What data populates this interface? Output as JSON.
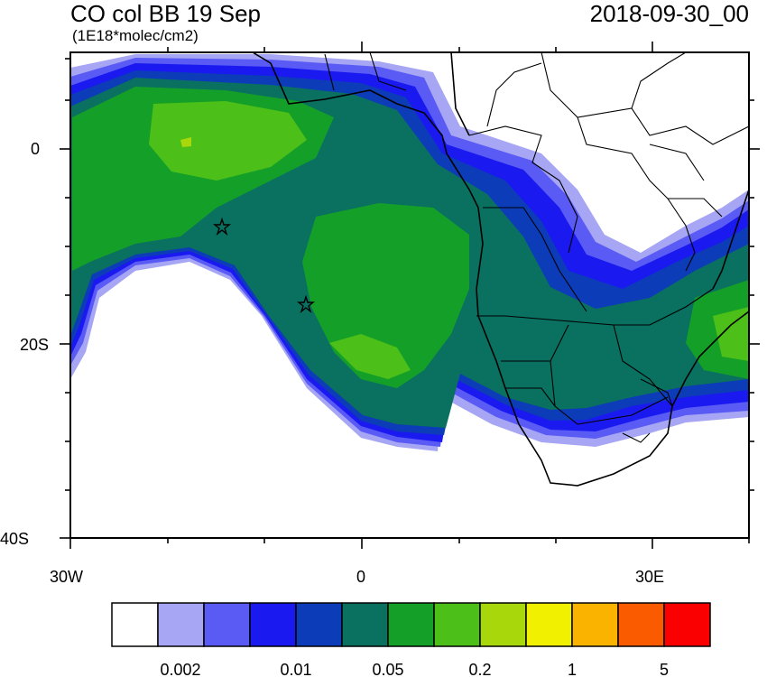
{
  "title": "CO col BB 19 Sep",
  "units": "(1E18*molec/cm2)",
  "datetime": "2018-09-30_00",
  "lat_ticks": [
    "0",
    "20S",
    "40S"
  ],
  "lon_ticks": [
    "30W",
    "0",
    "30E"
  ],
  "colorbar": {
    "colors": [
      "#ffffff",
      "#a6a6f5",
      "#5a5af5",
      "#1a1af0",
      "#0c3cb8",
      "#0a7060",
      "#14a028",
      "#4cc018",
      "#a8d80c",
      "#f0f000",
      "#fab400",
      "#fa5a00",
      "#fa0000"
    ],
    "labels": [
      "0.002",
      "0.01",
      "0.05",
      "0.2",
      "1",
      "5"
    ]
  },
  "markers": [
    {
      "name": "star",
      "lon": -14.5,
      "lat": -8.0
    },
    {
      "name": "star",
      "lon": -5.7,
      "lat": -16.0
    }
  ]
}
